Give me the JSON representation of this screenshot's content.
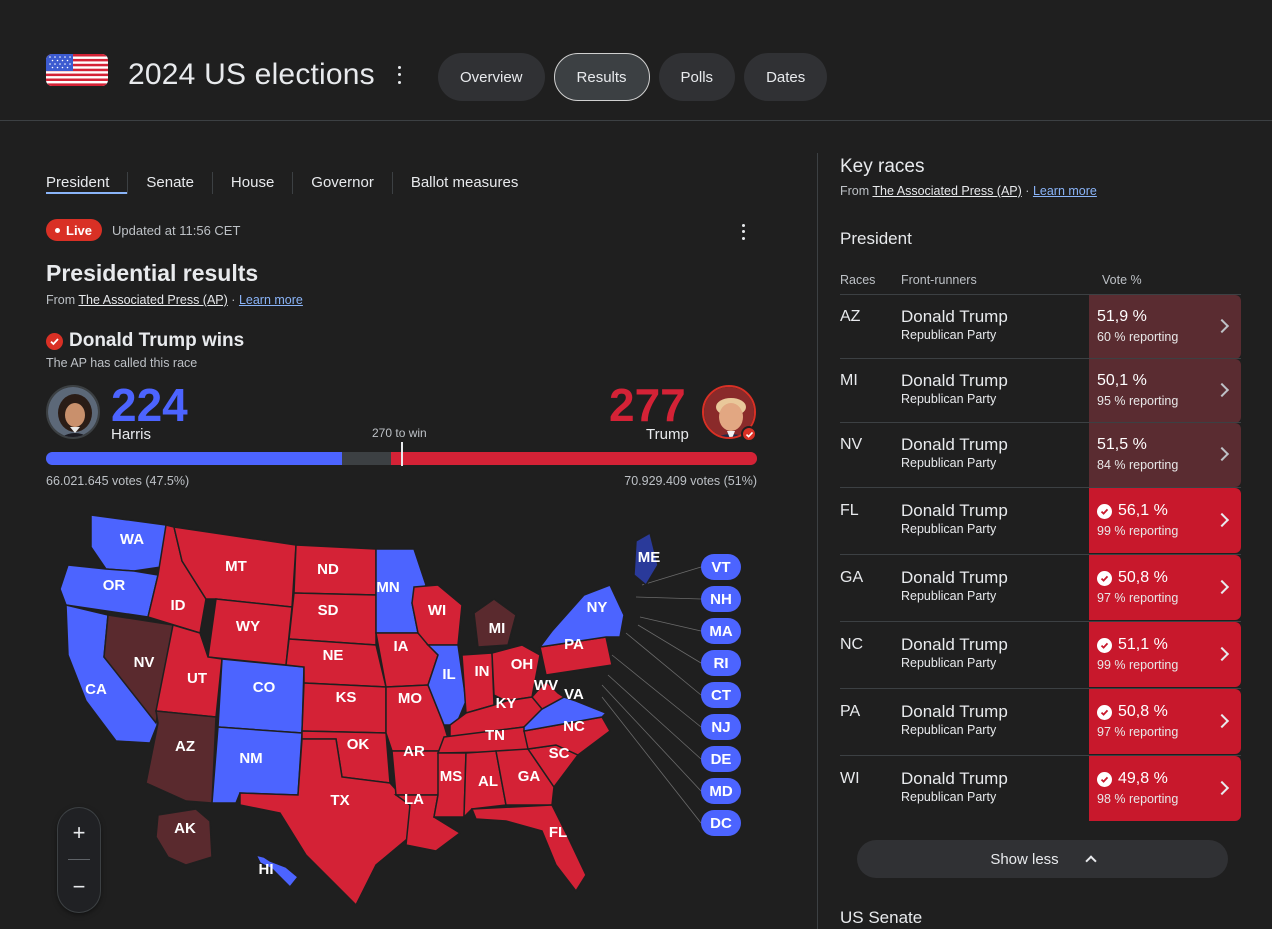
{
  "header": {
    "title": "2024 US elections",
    "tabs": [
      {
        "label": "Overview",
        "active": false
      },
      {
        "label": "Results",
        "active": true
      },
      {
        "label": "Polls",
        "active": false
      },
      {
        "label": "Dates",
        "active": false
      }
    ]
  },
  "race_tabs": [
    "President",
    "Senate",
    "House",
    "Governor",
    "Ballot measures"
  ],
  "live": {
    "label": "Live",
    "updated": "Updated at 11:56 CET"
  },
  "results": {
    "title": "Presidential results",
    "source_prefix": "From",
    "source_name": "The Associated Press (AP)",
    "source_sep": "·",
    "learn_more": "Learn more",
    "winner_text": "Donald Trump wins",
    "called_text": "The AP has called this race",
    "to_win": "270 to win",
    "harris": {
      "name": "Harris",
      "electoral_votes": "224",
      "votes_text": "66.021.645 votes (47.5%)",
      "bar_fraction": 0.416
    },
    "trump": {
      "name": "Trump",
      "electoral_votes": "277",
      "votes_text": "70.929.409 votes (51%)",
      "bar_fraction": 0.515
    }
  },
  "map": {
    "colors": {
      "dem": "#4c64ff",
      "dem_lead": "#2a3a9a",
      "rep": "#d42236",
      "rep_lead": "#5a2a2e",
      "border": "#1f1f1f"
    },
    "states": {
      "WA": "dem",
      "OR": "dem",
      "CA": "dem",
      "NV": "rep_lead",
      "ID": "rep",
      "MT": "rep",
      "WY": "rep",
      "UT": "rep",
      "AZ": "rep_lead",
      "CO": "dem",
      "NM": "dem",
      "ND": "rep",
      "SD": "rep",
      "NE": "rep",
      "KS": "rep",
      "OK": "rep",
      "TX": "rep",
      "MN": "dem",
      "IA": "rep",
      "MO": "rep",
      "AR": "rep",
      "LA": "rep",
      "WI": "rep",
      "IL": "dem",
      "MI": "rep_lead",
      "IN": "rep",
      "OH": "rep",
      "KY": "rep",
      "TN": "rep",
      "MS": "rep",
      "AL": "rep",
      "GA": "rep",
      "FL": "rep",
      "SC": "rep",
      "NC": "rep",
      "VA": "dem",
      "WV": "rep",
      "PA": "rep",
      "NY": "dem",
      "ME": "dem_lead",
      "AK": "rep_lead",
      "HI": "dem"
    },
    "small_states": [
      "VT",
      "NH",
      "MA",
      "RI",
      "CT",
      "NJ",
      "DE",
      "MD",
      "DC"
    ],
    "zoom_in": "+",
    "zoom_out": "−"
  },
  "key_races": {
    "title": "Key races",
    "section": "President",
    "columns": {
      "races": "Races",
      "front_runners": "Front-runners",
      "vote": "Vote %"
    },
    "rows": [
      {
        "state": "AZ",
        "candidate": "Donald Trump",
        "party": "Republican Party",
        "vote": "51,9 %",
        "reporting": "60 % reporting",
        "called": false
      },
      {
        "state": "MI",
        "candidate": "Donald Trump",
        "party": "Republican Party",
        "vote": "50,1 %",
        "reporting": "95 % reporting",
        "called": false
      },
      {
        "state": "NV",
        "candidate": "Donald Trump",
        "party": "Republican Party",
        "vote": "51,5 %",
        "reporting": "84 % reporting",
        "called": false
      },
      {
        "state": "FL",
        "candidate": "Donald Trump",
        "party": "Republican Party",
        "vote": "56,1 %",
        "reporting": "99 % reporting",
        "called": true
      },
      {
        "state": "GA",
        "candidate": "Donald Trump",
        "party": "Republican Party",
        "vote": "50,8 %",
        "reporting": "97 % reporting",
        "called": true
      },
      {
        "state": "NC",
        "candidate": "Donald Trump",
        "party": "Republican Party",
        "vote": "51,1 %",
        "reporting": "99 % reporting",
        "called": true
      },
      {
        "state": "PA",
        "candidate": "Donald Trump",
        "party": "Republican Party",
        "vote": "50,8 %",
        "reporting": "97 % reporting",
        "called": true
      },
      {
        "state": "WI",
        "candidate": "Donald Trump",
        "party": "Republican Party",
        "vote": "49,8 %",
        "reporting": "98 % reporting",
        "called": true
      }
    ],
    "show_less": "Show less",
    "next_section": "US Senate"
  }
}
